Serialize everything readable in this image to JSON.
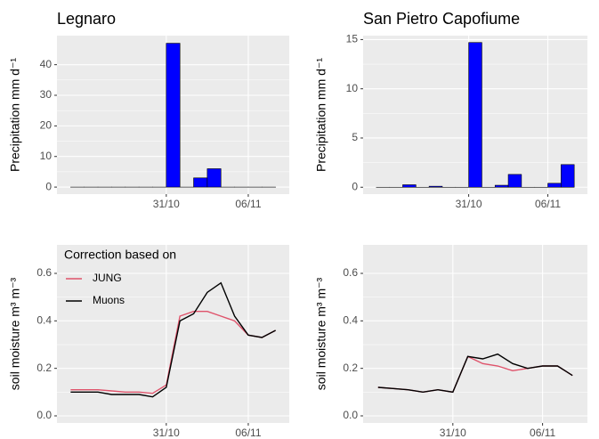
{
  "chart_data": [
    {
      "type": "bar",
      "title": "Legnaro",
      "ylabel": "Precipitation mm d⁻¹",
      "x": [
        "24/10",
        "25/10",
        "26/10",
        "27/10",
        "28/10",
        "29/10",
        "30/10",
        "31/10",
        "01/11",
        "02/11",
        "03/11",
        "04/11",
        "05/11",
        "06/11",
        "07/11"
      ],
      "values": [
        0,
        0,
        0,
        0,
        0,
        0,
        0,
        47,
        0,
        3,
        6,
        0,
        0,
        0,
        0
      ],
      "color": "#0000ff",
      "xlim": [
        "23/10",
        "09/11"
      ],
      "xticks": [
        "31/10",
        "06/11"
      ],
      "ylim": [
        -2.3,
        49.5
      ],
      "yticks": [
        0,
        10,
        20,
        30,
        40
      ],
      "grid": true
    },
    {
      "type": "bar",
      "title": "San Pietro Capofiume",
      "ylabel": "Precipitation mm d⁻¹",
      "x": [
        "24/10",
        "25/10",
        "26/10",
        "27/10",
        "28/10",
        "29/10",
        "30/10",
        "31/10",
        "01/11",
        "02/11",
        "03/11",
        "04/11",
        "05/11",
        "06/11",
        "07/11"
      ],
      "values": [
        0,
        0,
        0.25,
        0,
        0.1,
        0,
        0,
        14.7,
        0,
        0.2,
        1.3,
        0,
        0,
        0.4,
        2.3
      ],
      "color": "#0000ff",
      "xlim": [
        "23/10",
        "09/11"
      ],
      "xticks": [
        "31/10",
        "06/11"
      ],
      "ylim": [
        -0.7,
        15.4
      ],
      "yticks": [
        0,
        5,
        10,
        15
      ],
      "grid": true
    },
    {
      "type": "line",
      "ylabel": "soil moisture m³ m⁻³",
      "legend_title": "Correction based on",
      "legend": "top-left",
      "x": [
        "24/10",
        "25/10",
        "26/10",
        "27/10",
        "28/10",
        "29/10",
        "30/10",
        "31/10",
        "01/11",
        "02/11",
        "03/11",
        "04/11",
        "05/11",
        "06/11",
        "07/11",
        "08/11"
      ],
      "series": [
        {
          "name": "JUNG",
          "color": "#df536b",
          "values": [
            0.11,
            0.11,
            0.11,
            0.105,
            0.1,
            0.1,
            0.095,
            0.13,
            0.42,
            0.44,
            0.44,
            0.42,
            0.4,
            0.34,
            0.33,
            0.36
          ]
        },
        {
          "name": "Muons",
          "color": "#000000",
          "values": [
            0.1,
            0.1,
            0.1,
            0.09,
            0.09,
            0.09,
            0.08,
            0.12,
            0.4,
            0.43,
            0.52,
            0.56,
            0.42,
            0.34,
            0.33,
            0.36
          ]
        }
      ],
      "xlim": [
        "23/10",
        "09/11"
      ],
      "xticks": [
        "31/10",
        "06/11"
      ],
      "ylim": [
        -0.03,
        0.72
      ],
      "yticks": [
        {
          "value": 0,
          "label": "0.0"
        },
        0.2,
        0.4,
        0.6
      ],
      "grid": true
    },
    {
      "type": "line",
      "ylabel": "soil moisture m³ m⁻³",
      "x": [
        "26/10",
        "27/10",
        "28/10",
        "29/10",
        "30/10",
        "31/10",
        "01/11",
        "02/11",
        "03/11",
        "04/11",
        "05/11",
        "06/11",
        "07/11",
        "08/11"
      ],
      "series": [
        {
          "name": "JUNG",
          "color": "#df536b",
          "values": [
            0.12,
            0.115,
            0.11,
            0.1,
            0.11,
            0.1,
            0.25,
            0.22,
            0.21,
            0.19,
            0.2,
            0.21,
            0.21,
            0.17
          ]
        },
        {
          "name": "Muons",
          "color": "#000000",
          "values": [
            0.12,
            0.115,
            0.11,
            0.1,
            0.11,
            0.1,
            0.25,
            0.24,
            0.26,
            0.22,
            0.2,
            0.21,
            0.21,
            0.17
          ]
        }
      ],
      "xlim": [
        "25/10",
        "09/11"
      ],
      "xticks": [
        "31/10",
        "06/11"
      ],
      "ylim": [
        -0.03,
        0.72
      ],
      "yticks": [
        {
          "value": 0,
          "label": "0.0"
        },
        0.2,
        0.4,
        0.6
      ],
      "grid": true
    }
  ]
}
